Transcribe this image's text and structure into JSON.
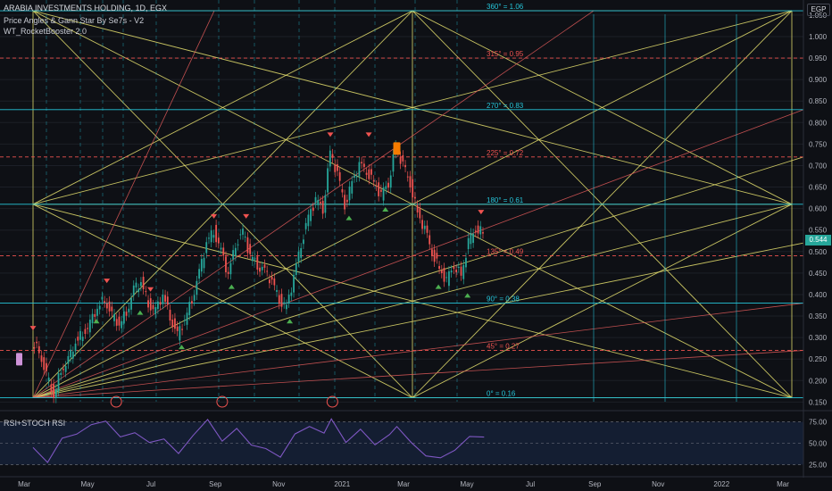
{
  "header": {
    "title": "ARABIA INVESTMENTS HOLDING, 1D, EGX",
    "indicator_1": "Price Angles & Gann Star By Se7s - V2",
    "indicator_2": "WT_RocketBooster 2.0",
    "rsi_label": "RSI+STOCH RSI",
    "currency": "EGP",
    "last_price": "0.544"
  },
  "colors": {
    "background": "#0e1015",
    "gann_yellow": "#e6e06e",
    "gann_red": "#e05a5a",
    "cyan_level": "#26c6da",
    "red_level": "#ef5350",
    "candle_up": "#26a69a",
    "candle_down": "#ef5350",
    "rsi_line": "#7e57c2"
  },
  "chart_data": {
    "type": "line",
    "title": "ARABIA INVESTMENTS HOLDING, 1D, EGX",
    "x_ticks": [
      "Mar",
      "May",
      "Jul",
      "Sep",
      "Nov",
      "2021",
      "Mar",
      "May",
      "Jul",
      "Sep",
      "Nov",
      "2022",
      "Mar"
    ],
    "y_ticks": [
      "1.050",
      "1.000",
      "0.950",
      "0.900",
      "0.850",
      "0.800",
      "0.750",
      "0.700",
      "0.650",
      "0.600",
      "0.550",
      "0.500",
      "0.450",
      "0.400",
      "0.350",
      "0.300",
      "0.250",
      "0.200",
      "0.150"
    ],
    "ylim": [
      0.13,
      1.085
    ],
    "gann_levels": [
      {
        "label": "360° = 1.06",
        "value": 1.06,
        "kind": "cyan"
      },
      {
        "label": "315° = 0.95",
        "value": 0.95,
        "kind": "red"
      },
      {
        "label": "270° = 0.83",
        "value": 0.83,
        "kind": "cyan"
      },
      {
        "label": "225° = 0.72",
        "value": 0.72,
        "kind": "red"
      },
      {
        "label": "180° = 0.61",
        "value": 0.61,
        "kind": "cyan"
      },
      {
        "label": "135° = 0.49",
        "value": 0.49,
        "kind": "red"
      },
      {
        "label": "90° = 0.38",
        "value": 0.38,
        "kind": "cyan"
      },
      {
        "label": "45° = 0.27",
        "value": 0.27,
        "kind": "red"
      },
      {
        "label": "0° = 0.16",
        "value": 0.16,
        "kind": "cyan"
      }
    ],
    "price_series": [
      [
        "2020-03-01",
        0.285
      ],
      [
        "2020-03-08",
        0.27
      ],
      [
        "2020-03-15",
        0.21
      ],
      [
        "2020-03-22",
        0.165
      ],
      [
        "2020-03-29",
        0.225
      ],
      [
        "2020-04-05",
        0.245
      ],
      [
        "2020-04-12",
        0.29
      ],
      [
        "2020-04-19",
        0.31
      ],
      [
        "2020-04-26",
        0.33
      ],
      [
        "2020-05-03",
        0.37
      ],
      [
        "2020-05-10",
        0.39
      ],
      [
        "2020-05-17",
        0.35
      ],
      [
        "2020-05-24",
        0.33
      ],
      [
        "2020-05-31",
        0.36
      ],
      [
        "2020-06-07",
        0.41
      ],
      [
        "2020-06-14",
        0.43
      ],
      [
        "2020-06-21",
        0.38
      ],
      [
        "2020-06-28",
        0.36
      ],
      [
        "2020-07-05",
        0.4
      ],
      [
        "2020-07-12",
        0.35
      ],
      [
        "2020-07-19",
        0.305
      ],
      [
        "2020-07-26",
        0.34
      ],
      [
        "2020-08-02",
        0.39
      ],
      [
        "2020-08-09",
        0.45
      ],
      [
        "2020-08-16",
        0.52
      ],
      [
        "2020-08-23",
        0.55
      ],
      [
        "2020-08-30",
        0.5
      ],
      [
        "2020-09-06",
        0.445
      ],
      [
        "2020-09-13",
        0.52
      ],
      [
        "2020-09-20",
        0.545
      ],
      [
        "2020-09-27",
        0.49
      ],
      [
        "2020-10-04",
        0.47
      ],
      [
        "2020-10-11",
        0.455
      ],
      [
        "2020-10-18",
        0.43
      ],
      [
        "2020-10-25",
        0.39
      ],
      [
        "2020-11-01",
        0.37
      ],
      [
        "2020-11-08",
        0.44
      ],
      [
        "2020-11-15",
        0.52
      ],
      [
        "2020-11-22",
        0.58
      ],
      [
        "2020-11-29",
        0.62
      ],
      [
        "2020-12-06",
        0.6
      ],
      [
        "2020-12-13",
        0.73
      ],
      [
        "2020-12-20",
        0.68
      ],
      [
        "2020-12-27",
        0.61
      ],
      [
        "2021-01-03",
        0.66
      ],
      [
        "2021-01-10",
        0.7
      ],
      [
        "2021-01-17",
        0.69
      ],
      [
        "2021-01-24",
        0.66
      ],
      [
        "2021-01-31",
        0.63
      ],
      [
        "2021-02-07",
        0.66
      ],
      [
        "2021-02-14",
        0.745
      ],
      [
        "2021-02-21",
        0.7
      ],
      [
        "2021-02-28",
        0.66
      ],
      [
        "2021-03-07",
        0.59
      ],
      [
        "2021-03-14",
        0.55
      ],
      [
        "2021-03-21",
        0.5
      ],
      [
        "2021-03-28",
        0.46
      ],
      [
        "2021-04-04",
        0.43
      ],
      [
        "2021-04-11",
        0.47
      ],
      [
        "2021-04-18",
        0.445
      ],
      [
        "2021-04-25",
        0.52
      ],
      [
        "2021-05-02",
        0.555
      ],
      [
        "2021-05-09",
        0.544
      ]
    ],
    "buy_signals": [
      [
        "2020-05-01",
        0.36
      ],
      [
        "2020-06-12",
        0.38
      ],
      [
        "2020-07-22",
        0.3
      ],
      [
        "2020-09-08",
        0.44
      ],
      [
        "2020-11-03",
        0.36
      ],
      [
        "2020-12-30",
        0.6
      ],
      [
        "2021-02-03",
        0.62
      ],
      [
        "2021-03-26",
        0.44
      ],
      [
        "2021-04-23",
        0.42
      ]
    ],
    "sell_signals": [
      [
        "2020-03-01",
        0.3
      ],
      [
        "2020-05-11",
        0.41
      ],
      [
        "2020-06-22",
        0.39
      ],
      [
        "2020-08-22",
        0.56
      ],
      [
        "2020-09-22",
        0.56
      ],
      [
        "2020-12-12",
        0.75
      ],
      [
        "2021-01-18",
        0.75
      ],
      [
        "2021-05-06",
        0.57
      ]
    ],
    "earnings_markers": [
      "2020-05-20",
      "2020-08-30",
      "2020-12-14"
    ],
    "rsi": {
      "y_ticks": [
        "75.00",
        "50.00",
        "25.00"
      ],
      "ylim": [
        15,
        85
      ],
      "values": [
        [
          "2020-03-01",
          45
        ],
        [
          "2020-03-15",
          28
        ],
        [
          "2020-03-29",
          55
        ],
        [
          "2020-04-12",
          62
        ],
        [
          "2020-04-26",
          70
        ],
        [
          "2020-05-10",
          78
        ],
        [
          "2020-05-24",
          55
        ],
        [
          "2020-06-07",
          65
        ],
        [
          "2020-06-21",
          48
        ],
        [
          "2020-07-05",
          58
        ],
        [
          "2020-07-19",
          35
        ],
        [
          "2020-08-02",
          62
        ],
        [
          "2020-08-16",
          75
        ],
        [
          "2020-08-30",
          55
        ],
        [
          "2020-09-13",
          65
        ],
        [
          "2020-09-27",
          50
        ],
        [
          "2020-10-11",
          42
        ],
        [
          "2020-10-25",
          35
        ],
        [
          "2020-11-08",
          60
        ],
        [
          "2020-11-22",
          70
        ],
        [
          "2020-12-06",
          62
        ],
        [
          "2020-12-13",
          78
        ],
        [
          "2020-12-27",
          52
        ],
        [
          "2021-01-10",
          65
        ],
        [
          "2021-01-24",
          50
        ],
        [
          "2021-02-07",
          58
        ],
        [
          "2021-02-14",
          72
        ],
        [
          "2021-02-28",
          48
        ],
        [
          "2021-03-14",
          38
        ],
        [
          "2021-03-28",
          30
        ],
        [
          "2021-04-11",
          45
        ],
        [
          "2021-04-25",
          55
        ],
        [
          "2021-05-09",
          60
        ]
      ]
    }
  }
}
